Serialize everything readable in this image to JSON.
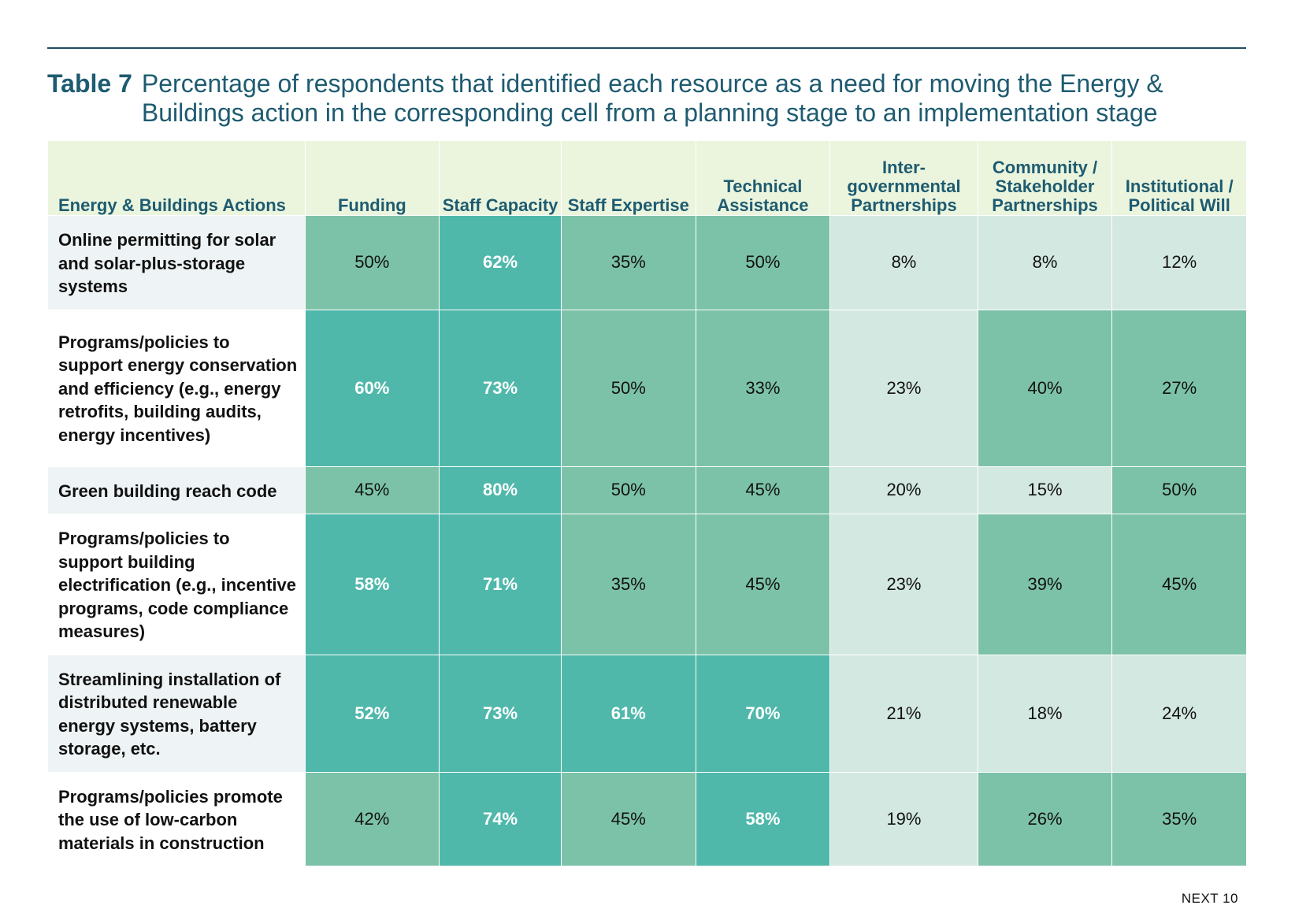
{
  "title": {
    "number": "Table 7",
    "text": "Percentage of respondents that identified each resource as a need for moving the Energy & Buildings action in the corresponding cell from a planning stage to an implementation stage"
  },
  "colors": {
    "rule": "#1e4e61",
    "title": "#1e5b70",
    "header_bg": "#ebf5de",
    "level_low": "#d3e8e0",
    "level_mid": "#7cc2a9",
    "level_high": "#4fb8aa"
  },
  "table": {
    "headers": [
      "Energy & Buildings Actions",
      "Funding",
      "Staff Capacity",
      "Staff Expertise",
      "Technical Assistance",
      "Inter-governmental Partnerships",
      "Community / Stakeholder Partnerships",
      "Institutional / Political Will"
    ],
    "rows": [
      {
        "action": "Online permitting for solar and solar-plus-storage systems",
        "values": [
          "50%",
          "62%",
          "35%",
          "50%",
          "8%",
          "8%",
          "12%"
        ],
        "levels": [
          "mid",
          "high",
          "mid",
          "mid",
          "low",
          "low",
          "low"
        ]
      },
      {
        "action": "Programs/policies to support energy conservation and efficiency (e.g., energy retrofits, building audits, energy incentives)",
        "values": [
          "60%",
          "73%",
          "50%",
          "33%",
          "23%",
          "40%",
          "27%"
        ],
        "levels": [
          "high",
          "high",
          "mid",
          "mid",
          "low",
          "mid",
          "mid"
        ]
      },
      {
        "action": "Green building reach code",
        "values": [
          "45%",
          "80%",
          "50%",
          "45%",
          "20%",
          "15%",
          "50%"
        ],
        "levels": [
          "mid",
          "high",
          "mid",
          "mid",
          "low",
          "low",
          "mid"
        ]
      },
      {
        "action": "Programs/policies to support building electrification (e.g., incentive programs, code compliance measures)",
        "values": [
          "58%",
          "71%",
          "35%",
          "45%",
          "23%",
          "39%",
          "45%"
        ],
        "levels": [
          "high",
          "high",
          "mid",
          "mid",
          "low",
          "mid",
          "mid"
        ]
      },
      {
        "action": "Streamlining installation of distributed renewable energy systems, battery storage, etc.",
        "values": [
          "52%",
          "73%",
          "61%",
          "70%",
          "21%",
          "18%",
          "24%"
        ],
        "levels": [
          "high",
          "high",
          "high",
          "high",
          "low",
          "low",
          "low"
        ]
      },
      {
        "action": "Programs/policies promote the use of low-carbon materials in construction",
        "values": [
          "42%",
          "74%",
          "45%",
          "58%",
          "19%",
          "26%",
          "35%"
        ],
        "levels": [
          "mid",
          "high",
          "mid",
          "high",
          "low",
          "mid",
          "mid"
        ]
      }
    ]
  },
  "footer": "NEXT 10"
}
